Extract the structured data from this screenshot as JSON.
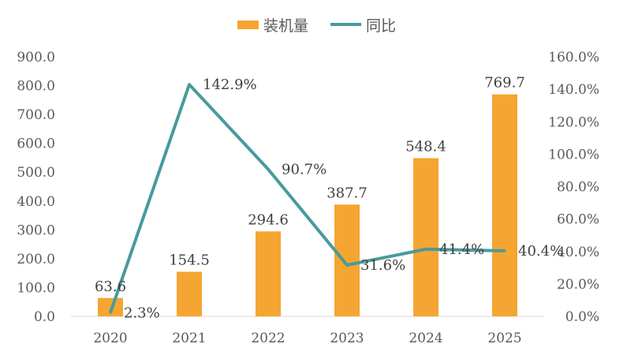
{
  "chart_data": {
    "type": "bar",
    "categories": [
      "2020",
      "2021",
      "2022",
      "2023",
      "2024",
      "2025"
    ],
    "series": [
      {
        "name": "装机量",
        "type": "bar",
        "axis": "left",
        "color": "#F5A531",
        "values": [
          63.6,
          154.5,
          294.6,
          387.7,
          548.4,
          769.7
        ],
        "labels": [
          "63.6",
          "154.5",
          "294.6",
          "387.7",
          "548.4",
          "769.7"
        ]
      },
      {
        "name": "同比",
        "type": "line",
        "axis": "right",
        "color": "#4A9A9B",
        "values": [
          2.3,
          142.9,
          90.7,
          31.6,
          41.4,
          40.4
        ],
        "labels": [
          "2.3%",
          "142.9%",
          "90.7%",
          "31.6%",
          "41.4%",
          "40.4%"
        ]
      }
    ],
    "y_left": {
      "range": [
        0,
        900
      ],
      "ticks": [
        0,
        100,
        200,
        300,
        400,
        500,
        600,
        700,
        800,
        900
      ],
      "tick_labels": [
        "0.0",
        "100.0",
        "200.0",
        "300.0",
        "400.0",
        "500.0",
        "600.0",
        "700.0",
        "800.0",
        "900.0"
      ]
    },
    "y_right": {
      "range": [
        0,
        160
      ],
      "ticks": [
        0,
        20,
        40,
        60,
        80,
        100,
        120,
        140,
        160
      ],
      "tick_labels": [
        "0.0%",
        "20.0%",
        "40.0%",
        "60.0%",
        "80.0%",
        "100.0%",
        "120.0%",
        "140.0%",
        "160.0%"
      ]
    },
    "legend": {
      "position": "top-center"
    },
    "grid": false,
    "title": "",
    "xlabel": "",
    "ylabel": ""
  }
}
